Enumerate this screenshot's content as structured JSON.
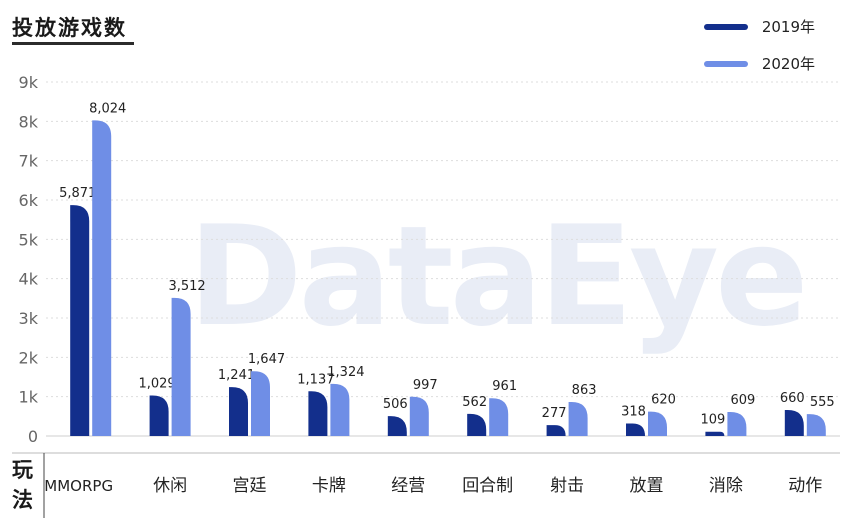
{
  "title": "投放游戏数",
  "legend": [
    {
      "label": "2019年",
      "color": "#132f8c"
    },
    {
      "label": "2020年",
      "color": "#6f8ee6"
    }
  ],
  "watermark": "DataEye",
  "chart_data": {
    "type": "bar",
    "title": "投放游戏数",
    "xlabel": "玩法",
    "ylabel": "",
    "ylim": [
      0,
      9000
    ],
    "yticks": [
      {
        "value": 0,
        "label": "0"
      },
      {
        "value": 1000,
        "label": "1k"
      },
      {
        "value": 2000,
        "label": "2k"
      },
      {
        "value": 3000,
        "label": "3k"
      },
      {
        "value": 4000,
        "label": "4k"
      },
      {
        "value": 5000,
        "label": "5k"
      },
      {
        "value": 6000,
        "label": "6k"
      },
      {
        "value": 7000,
        "label": "7k"
      },
      {
        "value": 8000,
        "label": "8k"
      },
      {
        "value": 9000,
        "label": "9k"
      }
    ],
    "categories": [
      "MMORPG",
      "休闲",
      "宫廷",
      "卡牌",
      "经营",
      "回合制",
      "射击",
      "放置",
      "消除",
      "动作"
    ],
    "series": [
      {
        "name": "2019年",
        "color": "#132f8c",
        "values": [
          5871,
          1029,
          1241,
          1137,
          506,
          562,
          277,
          318,
          109,
          660
        ],
        "labels": [
          "5,871",
          "1,029",
          "1,241",
          "1,137",
          "506",
          "562",
          "277",
          "318",
          "109",
          "660"
        ]
      },
      {
        "name": "2020年",
        "color": "#6f8ee6",
        "values": [
          8024,
          3512,
          1647,
          1324,
          997,
          961,
          863,
          620,
          609,
          555
        ],
        "labels": [
          "8,024",
          "3,512",
          "1,647",
          "1,324",
          "997",
          "961",
          "863",
          "620",
          "609",
          "555"
        ]
      }
    ],
    "grid": true,
    "legend_position": "top-right"
  }
}
